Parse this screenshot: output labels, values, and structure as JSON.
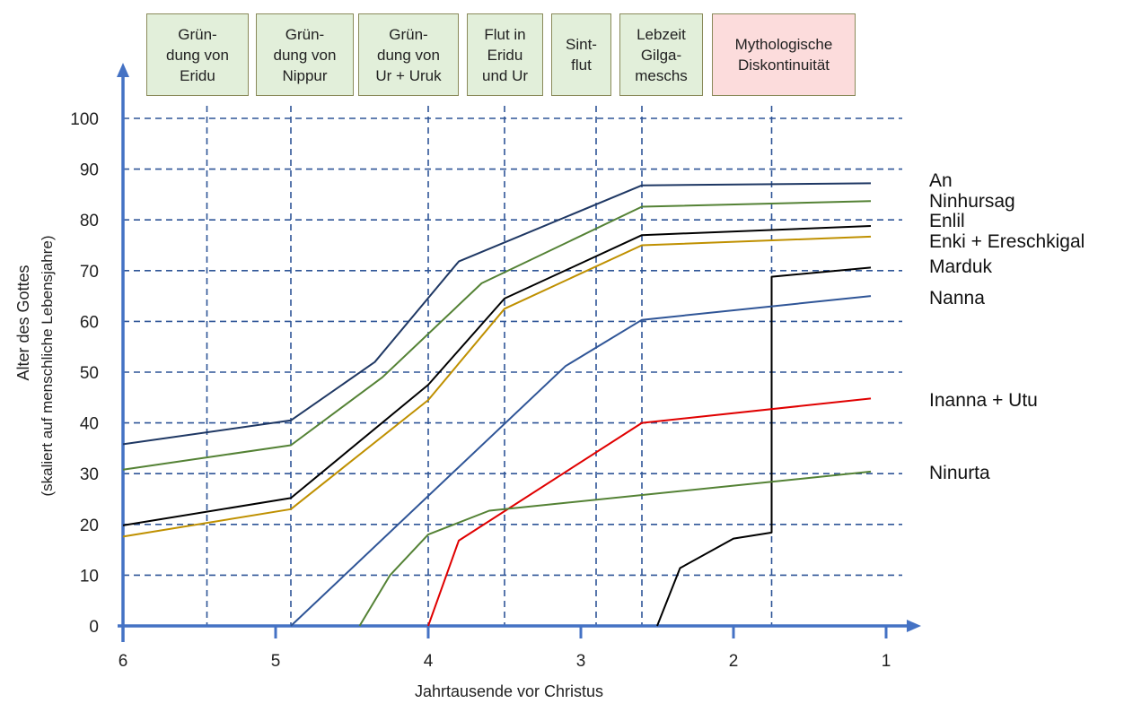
{
  "colors": {
    "axis": "#4472c4",
    "grid": "#2f5597",
    "box_green": "#e2efda",
    "box_red": "#fcdcdc"
  },
  "top_boxes": [
    {
      "label": "Grün-\ndung von\nEridu",
      "color": "green"
    },
    {
      "label": "Grün-\ndung von\nNippur",
      "color": "green"
    },
    {
      "label": "Grün-\ndung von\nUr + Uruk",
      "color": "green"
    },
    {
      "label": "Flut in\nEridu\nund Ur",
      "color": "green"
    },
    {
      "label": "Sint-\nflut",
      "color": "green"
    },
    {
      "label": "Lebzeit\nGilga-\nmeschs",
      "color": "green"
    },
    {
      "label": "Mythologische\nDiskontinuität",
      "color": "red"
    }
  ],
  "chart_data": {
    "type": "line",
    "xlabel": "Jahrtausende vor Christus",
    "ylabel_line1": "Alter des Gottes",
    "ylabel_line2": "(skaliert auf menschliche Lebensjahre)",
    "x_ticks": [
      "6",
      "5",
      "4",
      "3",
      "2",
      "1"
    ],
    "x_tick_values": [
      6,
      5,
      4,
      3,
      2,
      1
    ],
    "y_ticks": [
      "0",
      "10",
      "20",
      "30",
      "40",
      "50",
      "60",
      "70",
      "80",
      "90",
      "100"
    ],
    "xlim": [
      6,
      0.9
    ],
    "ylim": [
      0,
      100
    ],
    "vertical_gridlines_x": [
      5.45,
      4.9,
      4.0,
      3.5,
      2.9,
      2.6,
      1.75
    ],
    "series": [
      {
        "name": "An",
        "color": "#1f3864",
        "points": [
          [
            6,
            35.8
          ],
          [
            4.9,
            40.5
          ],
          [
            4.35,
            52
          ],
          [
            3.8,
            71.8
          ],
          [
            2.6,
            86.8
          ],
          [
            1.1,
            87.2
          ]
        ]
      },
      {
        "name": "Ninhursag",
        "color": "#548235",
        "points": [
          [
            6,
            30.8
          ],
          [
            4.9,
            35.6
          ],
          [
            4.3,
            49
          ],
          [
            3.65,
            67.5
          ],
          [
            2.6,
            82.6
          ],
          [
            1.1,
            83.7
          ]
        ]
      },
      {
        "name": "Enlil",
        "color": "#000000",
        "points": [
          [
            6,
            19.8
          ],
          [
            4.9,
            25.2
          ],
          [
            4.0,
            47.5
          ],
          [
            3.5,
            64.5
          ],
          [
            2.6,
            77
          ],
          [
            1.1,
            78.8
          ]
        ]
      },
      {
        "name": "Enki + Ereschkigal",
        "color": "#bf9000",
        "points": [
          [
            6,
            17.6
          ],
          [
            4.9,
            23
          ],
          [
            4.0,
            44.5
          ],
          [
            3.5,
            62.5
          ],
          [
            2.6,
            75
          ],
          [
            1.1,
            76.7
          ]
        ]
      },
      {
        "name": "Marduk",
        "color": "#000000",
        "points": [
          [
            2.5,
            0
          ],
          [
            2.35,
            11.4
          ],
          [
            2.0,
            17.2
          ],
          [
            1.75,
            18.4
          ],
          [
            1.75,
            68.8
          ],
          [
            1.1,
            70.6
          ]
        ]
      },
      {
        "name": "Nanna",
        "color": "#2f5597",
        "points": [
          [
            4.9,
            0
          ],
          [
            3.1,
            51.2
          ],
          [
            2.6,
            60.3
          ],
          [
            1.1,
            65
          ]
        ]
      },
      {
        "name": "Inanna + Utu",
        "color": "#e00000",
        "points": [
          [
            4.0,
            0
          ],
          [
            3.8,
            16.8
          ],
          [
            2.6,
            40
          ],
          [
            1.1,
            44.8
          ]
        ]
      },
      {
        "name": "Ninurta",
        "color": "#548235",
        "points": [
          [
            4.45,
            0
          ],
          [
            4.25,
            10
          ],
          [
            4.0,
            18
          ],
          [
            3.6,
            22.7
          ],
          [
            1.1,
            30.4
          ]
        ]
      }
    ]
  }
}
